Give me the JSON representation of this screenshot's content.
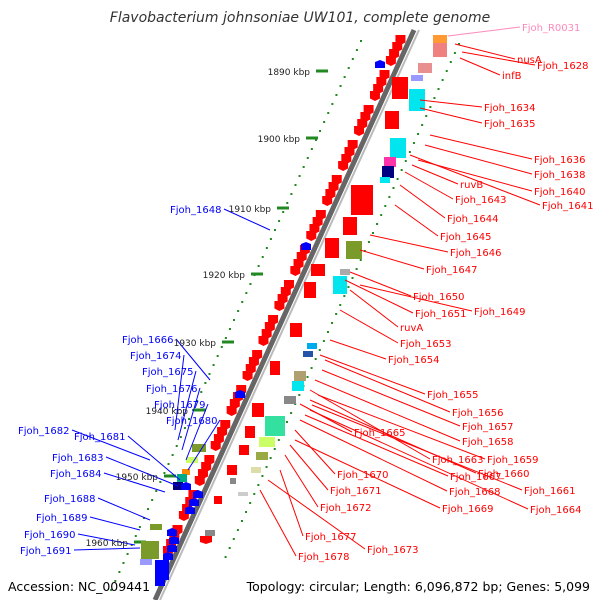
{
  "title": "Flavobacterium johnsoniae UW101, complete genome",
  "footer": {
    "accession": "Accession: NC_009441",
    "topology": "Topology: circular; Length: 6,096,872 bp; Genes: 5,099"
  },
  "colors": {
    "forward_gene": "#ff0000",
    "reverse_gene": "#0000ff",
    "rna_label": "#ff88bb",
    "tick": "#228822",
    "backbone": "#888888"
  },
  "kbp_labels": [
    "1890 kbp",
    "1900 kbp",
    "1910 kbp",
    "1920 kbp",
    "1930 kbp",
    "1940 kbp",
    "1950 kbp",
    "1960 kbp"
  ],
  "right_labels": [
    {
      "text": "Fjoh_R0031",
      "kind": "rna"
    },
    {
      "text": "nusA",
      "kind": "forward"
    },
    {
      "text": "Fjoh_1628",
      "kind": "forward"
    },
    {
      "text": "infB",
      "kind": "forward"
    },
    {
      "text": "Fjoh_1634",
      "kind": "forward"
    },
    {
      "text": "Fjoh_1635",
      "kind": "forward"
    },
    {
      "text": "Fjoh_1636",
      "kind": "forward"
    },
    {
      "text": "Fjoh_1638",
      "kind": "forward"
    },
    {
      "text": "ruvB",
      "kind": "forward"
    },
    {
      "text": "Fjoh_1640",
      "kind": "forward"
    },
    {
      "text": "Fjoh_1643",
      "kind": "forward"
    },
    {
      "text": "Fjoh_1641",
      "kind": "forward"
    },
    {
      "text": "Fjoh_1644",
      "kind": "forward"
    },
    {
      "text": "Fjoh_1645",
      "kind": "forward"
    },
    {
      "text": "Fjoh_1646",
      "kind": "forward"
    },
    {
      "text": "Fjoh_1647",
      "kind": "forward"
    },
    {
      "text": "Fjoh_1650",
      "kind": "forward"
    },
    {
      "text": "Fjoh_1651",
      "kind": "forward"
    },
    {
      "text": "Fjoh_1649",
      "kind": "forward"
    },
    {
      "text": "ruvA",
      "kind": "forward"
    },
    {
      "text": "Fjoh_1653",
      "kind": "forward"
    },
    {
      "text": "Fjoh_1654",
      "kind": "forward"
    },
    {
      "text": "Fjoh_1655",
      "kind": "forward"
    },
    {
      "text": "Fjoh_1656",
      "kind": "forward"
    },
    {
      "text": "Fjoh_1657",
      "kind": "forward"
    },
    {
      "text": "Fjoh_1665",
      "kind": "forward"
    },
    {
      "text": "Fjoh_1658",
      "kind": "forward"
    },
    {
      "text": "Fjoh_1663",
      "kind": "forward"
    },
    {
      "text": "Fjoh_1659",
      "kind": "forward"
    },
    {
      "text": "Fjoh_1670",
      "kind": "forward"
    },
    {
      "text": "Fjoh_1667",
      "kind": "forward"
    },
    {
      "text": "Fjoh_1660",
      "kind": "forward"
    },
    {
      "text": "Fjoh_1671",
      "kind": "forward"
    },
    {
      "text": "Fjoh_1668",
      "kind": "forward"
    },
    {
      "text": "Fjoh_1661",
      "kind": "forward"
    },
    {
      "text": "Fjoh_1672",
      "kind": "forward"
    },
    {
      "text": "Fjoh_1669",
      "kind": "forward"
    },
    {
      "text": "Fjoh_1664",
      "kind": "forward"
    },
    {
      "text": "Fjoh_1677",
      "kind": "forward"
    },
    {
      "text": "Fjoh_1673",
      "kind": "forward"
    },
    {
      "text": "Fjoh_1678",
      "kind": "forward"
    }
  ],
  "left_labels": [
    "Fjoh_1648",
    "Fjoh_1666",
    "Fjoh_1674",
    "Fjoh_1675",
    "Fjoh_1676",
    "Fjoh_1679",
    "Fjoh_1680",
    "Fjoh_1682",
    "Fjoh_1681",
    "Fjoh_1683",
    "Fjoh_1684",
    "Fjoh_1688",
    "Fjoh_1689",
    "Fjoh_1690",
    "Fjoh_1691"
  ]
}
